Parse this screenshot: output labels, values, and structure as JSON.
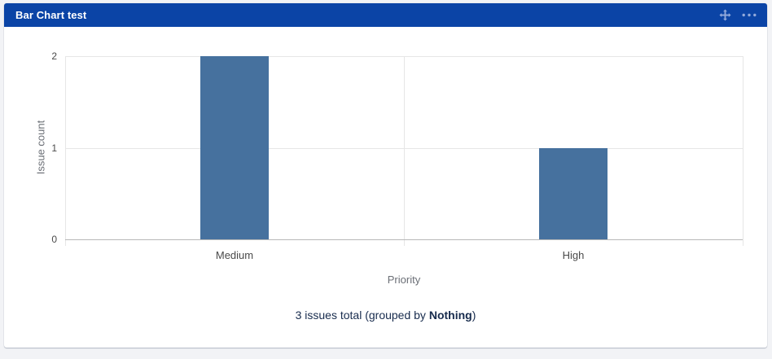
{
  "gadget": {
    "title": "Bar Chart test",
    "header_icons": [
      {
        "name": "move-icon",
        "meaning": "drag / move gadget"
      },
      {
        "name": "ellipsis-icon",
        "meaning": "more options menu"
      }
    ]
  },
  "chart_data": {
    "type": "bar",
    "categories": [
      "Medium",
      "High"
    ],
    "values": [
      2,
      1
    ],
    "title": "",
    "xlabel": "Priority",
    "ylabel": "Issue count",
    "ylim": [
      0,
      2
    ],
    "yticks": [
      0,
      1,
      2
    ],
    "grid": true,
    "legend": false,
    "bar_color": "#46719e"
  },
  "summary": {
    "prefix": "3 issues total (grouped by ",
    "bold": "Nothing",
    "suffix": ")"
  },
  "colors": {
    "page_bg": "#f2f3f6",
    "header_bg": "#0b44a6",
    "header_icon": "#93aadb",
    "bar": "#46719e",
    "gridline": "#e6e6e6",
    "baseline": "#b8b8b8",
    "axis_text": "#4a4a4a",
    "axis_title_text": "#6b6f76",
    "summary_text": "#172b4d"
  }
}
